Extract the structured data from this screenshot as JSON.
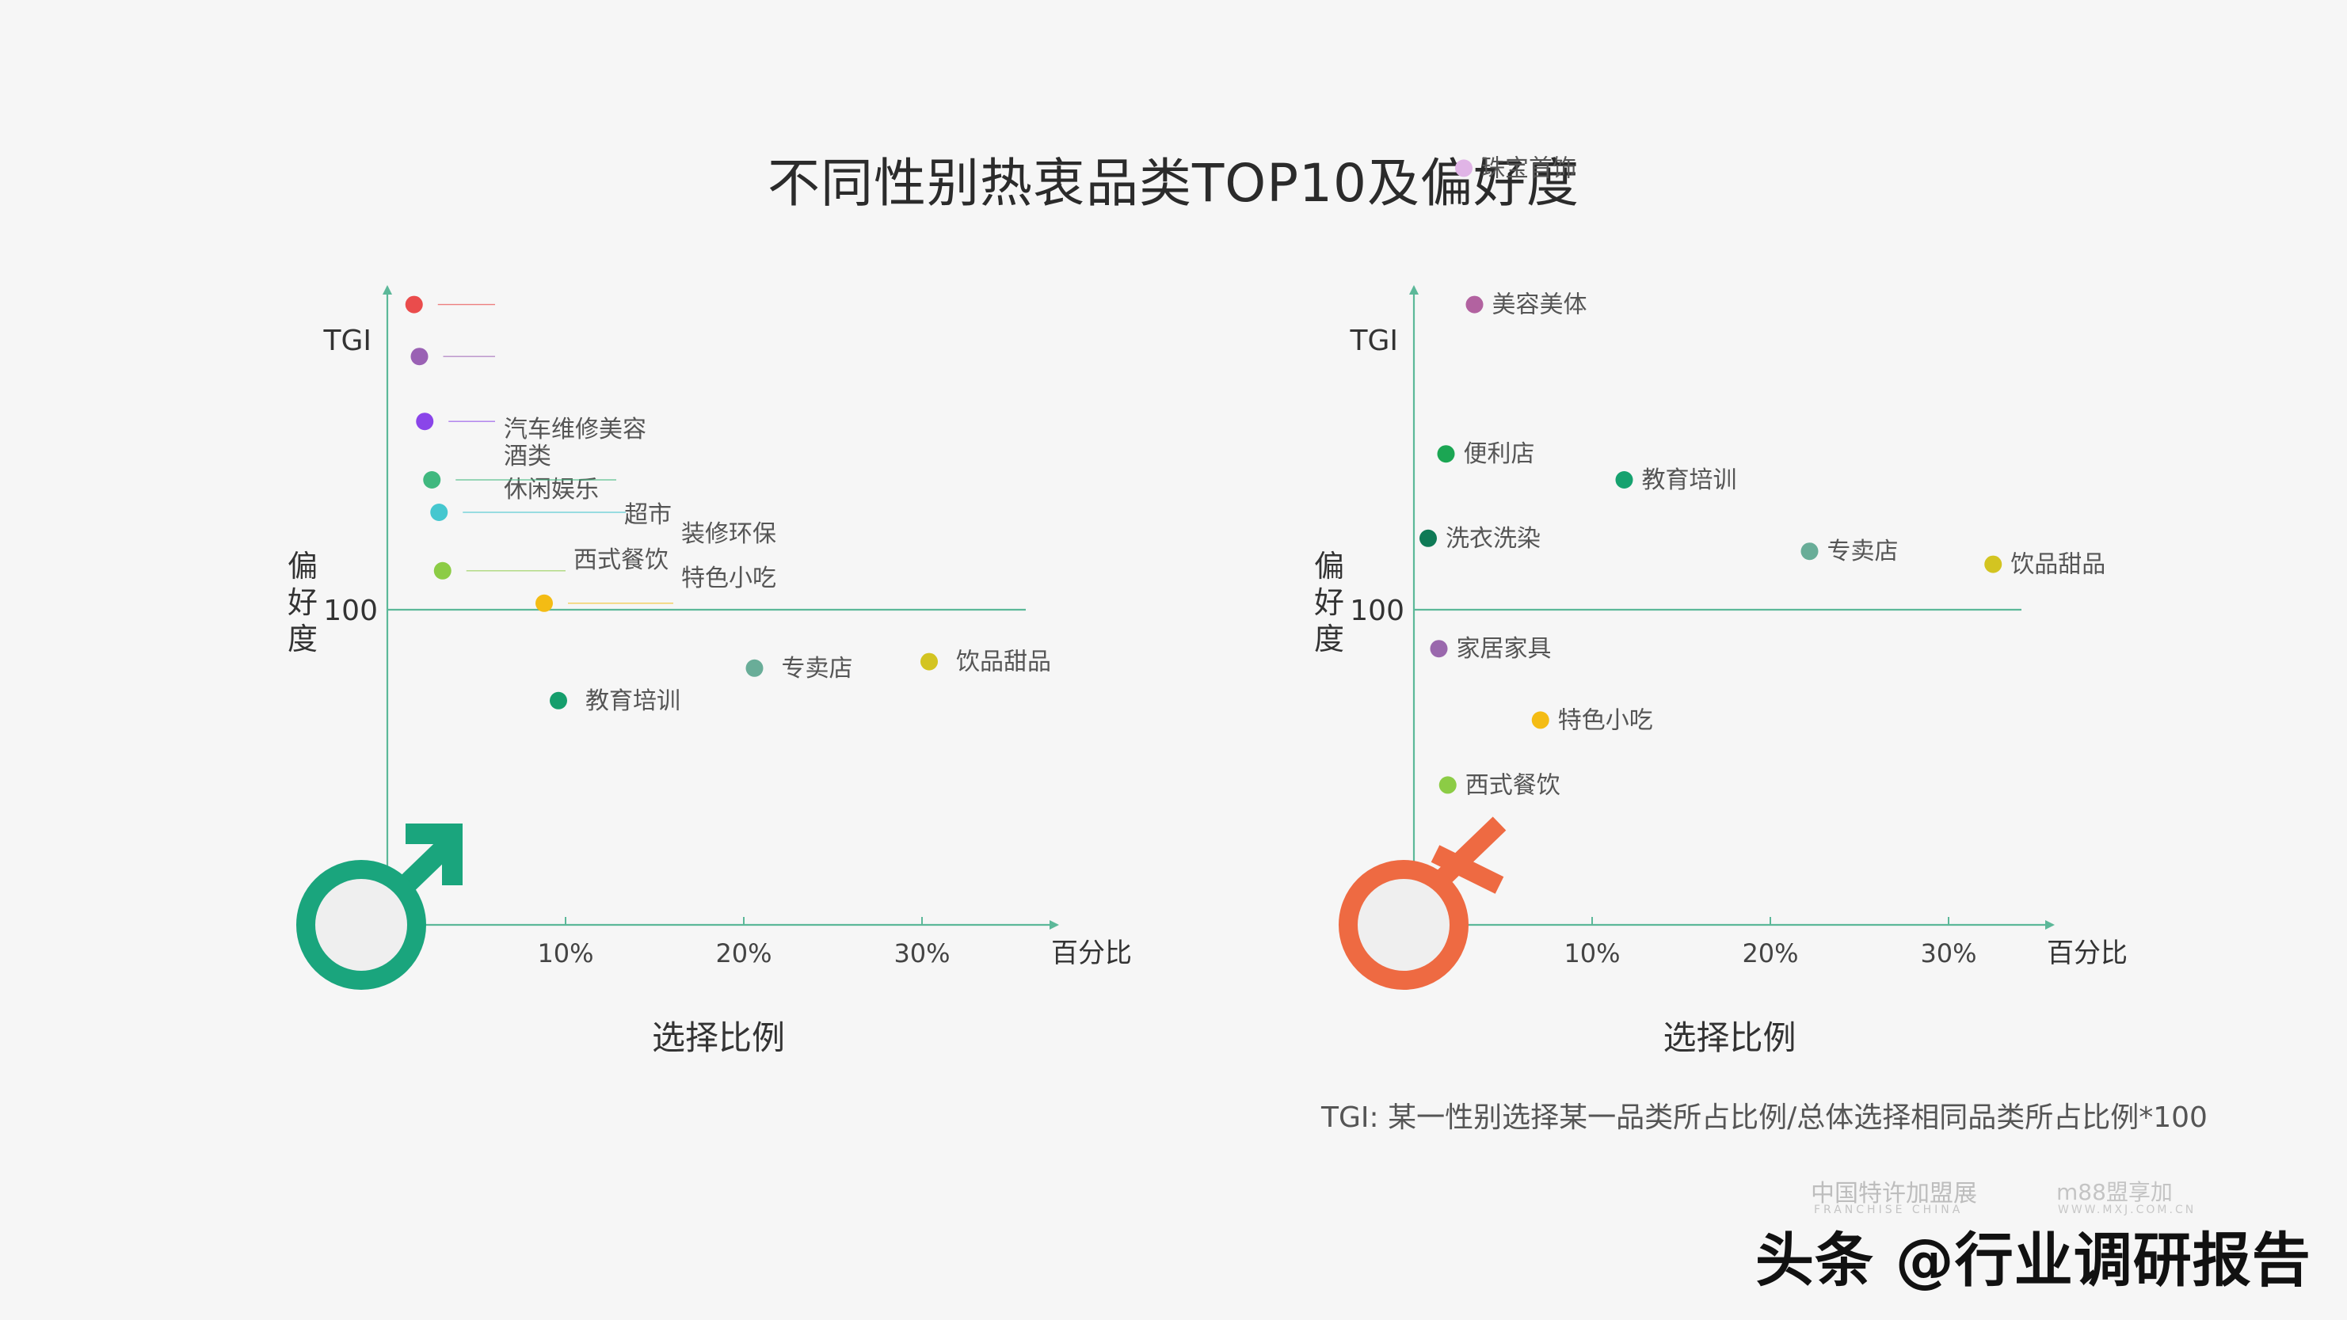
{
  "title": "不同性别热衷品类TOP10及偏好度",
  "footnote": "TGI: 某一性别选择某一品类所占比例/总体选择相同品类所占比例*100",
  "watermark": {
    "brand1": "中国特许加盟展",
    "brand1_sub": "FRANCHISE CHINA",
    "brand2": "m88盟享加",
    "brand2_sub": "WWW.MXJ.COM.CN",
    "credit": "头条 @行业调研报告"
  },
  "colors": {
    "axis": "#5cb899",
    "male_symbol": "#1aa57d",
    "female_symbol": "#ee6a42",
    "symbol_fill": "#efefef"
  },
  "chart_data": [
    {
      "type": "scatter",
      "panel": "male",
      "icon": "male-symbol-icon",
      "ylabel_top": "TGI",
      "ylabel_side": "偏好度",
      "xlabel_end": "百分比",
      "xlabel": "选择比例",
      "reference_line": {
        "y": 100,
        "label": "100"
      },
      "xticks": [
        {
          "value": 10,
          "label": "10%"
        },
        {
          "value": 20,
          "label": "20%"
        },
        {
          "value": 30,
          "label": "30%"
        }
      ],
      "points": [
        {
          "label": "汽车维修美容",
          "x": 1.5,
          "y": 147,
          "color": "#ea4c4c"
        },
        {
          "label": "酒类",
          "x": 1.8,
          "y": 139,
          "color": "#9a61b4"
        },
        {
          "label": "休闲娱乐",
          "x": 2.1,
          "y": 129,
          "color": "#8a45e9"
        },
        {
          "label": "超市",
          "x": 2.5,
          "y": 120,
          "color": "#40b87f"
        },
        {
          "label": "装修环保",
          "x": 2.9,
          "y": 115,
          "color": "#45c7cf"
        },
        {
          "label": "西式餐饮",
          "x": 3.1,
          "y": 106,
          "color": "#8ccc45"
        },
        {
          "label": "特色小吃",
          "x": 8.8,
          "y": 101,
          "color": "#f4bc14"
        },
        {
          "label": "教育培训",
          "x": 9.6,
          "y": 86,
          "color": "#159e6c"
        },
        {
          "label": "专卖店",
          "x": 20.6,
          "y": 91,
          "color": "#69ad98"
        },
        {
          "label": "饮品甜品",
          "x": 30.4,
          "y": 92,
          "color": "#d3c421"
        }
      ]
    },
    {
      "type": "scatter",
      "panel": "female",
      "icon": "female-symbol-icon",
      "ylabel_top": "TGI",
      "ylabel_side": "偏好度",
      "xlabel_end": "百分比",
      "xlabel": "选择比例",
      "reference_line": {
        "y": 100,
        "label": "100"
      },
      "xticks": [
        {
          "value": 10,
          "label": "10%"
        },
        {
          "value": 20,
          "label": "20%"
        },
        {
          "value": 30,
          "label": "30%"
        }
      ],
      "points": [
        {
          "label": "珠宝首饰",
          "x": 2.8,
          "y": 168,
          "color": "#e0b4e6"
        },
        {
          "label": "美容美体",
          "x": 3.4,
          "y": 147,
          "color": "#b262a0"
        },
        {
          "label": "便利店",
          "x": 1.8,
          "y": 124,
          "color": "#1ba653"
        },
        {
          "label": "洗衣洗染",
          "x": 0.8,
          "y": 111,
          "color": "#0f7a56"
        },
        {
          "label": "教育培训",
          "x": 11.8,
          "y": 120,
          "color": "#16a26f"
        },
        {
          "label": "专卖店",
          "x": 22.2,
          "y": 109,
          "color": "#69ad98"
        },
        {
          "label": "饮品甜品",
          "x": 32.5,
          "y": 107,
          "color": "#d3c421"
        },
        {
          "label": "家居家具",
          "x": 1.4,
          "y": 94,
          "color": "#9a68ad"
        },
        {
          "label": "特色小吃",
          "x": 7.1,
          "y": 83,
          "color": "#f4bc14"
        },
        {
          "label": "西式餐饮",
          "x": 1.9,
          "y": 73,
          "color": "#8ccc45"
        }
      ]
    }
  ]
}
